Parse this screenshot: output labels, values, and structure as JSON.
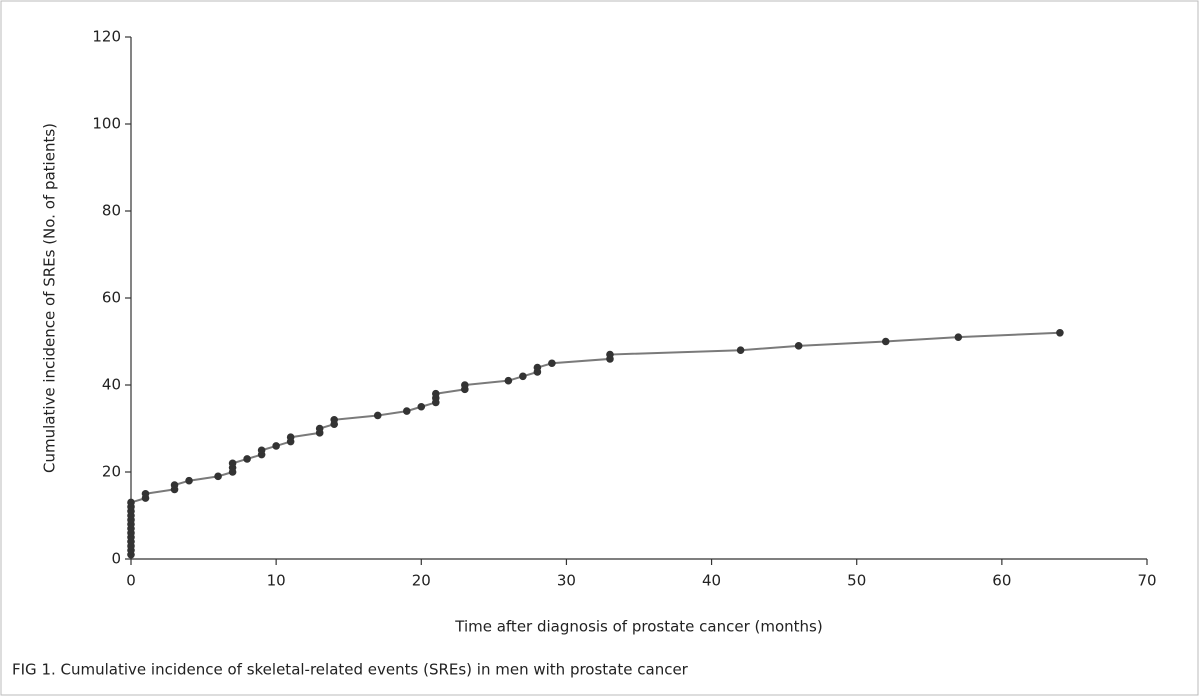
{
  "chart_data": {
    "type": "line",
    "caption": "FIG 1.  Cumulative incidence of skeletal-related events (SREs) in men with prostate cancer",
    "x_label": "Time after diagnosis of prostate cancer (months)",
    "y_label": "Cumulative incidence of SREs (No. of patients)",
    "x": [
      0,
      0,
      0,
      0,
      0,
      0,
      0,
      0,
      0,
      0,
      0,
      0,
      0,
      1,
      1,
      3,
      3,
      4,
      6,
      7,
      7,
      7,
      8,
      9,
      9,
      10,
      11,
      11,
      13,
      13,
      14,
      14,
      17,
      19,
      20,
      21,
      21,
      21,
      23,
      23,
      26,
      27,
      28,
      28,
      29,
      33,
      33,
      42,
      46,
      52,
      57,
      64
    ],
    "values": [
      1,
      2,
      3,
      4,
      5,
      6,
      7,
      8,
      9,
      10,
      11,
      12,
      13,
      14,
      15,
      16,
      17,
      18,
      19,
      20,
      21,
      22,
      23,
      24,
      25,
      26,
      27,
      28,
      29,
      30,
      31,
      32,
      33,
      34,
      35,
      36,
      37,
      38,
      39,
      40,
      41,
      42,
      43,
      44,
      45,
      46,
      47,
      48,
      49,
      50,
      51,
      52
    ],
    "line_color": "#7a7a7a",
    "marker_color": "#333333",
    "xlim": [
      0,
      70
    ],
    "xticks": [
      0,
      10,
      20,
      30,
      40,
      50,
      60,
      70
    ],
    "ylim": [
      0,
      120
    ],
    "yticks": [
      0,
      20,
      40,
      60,
      80,
      100,
      120
    ],
    "grid": false
  }
}
